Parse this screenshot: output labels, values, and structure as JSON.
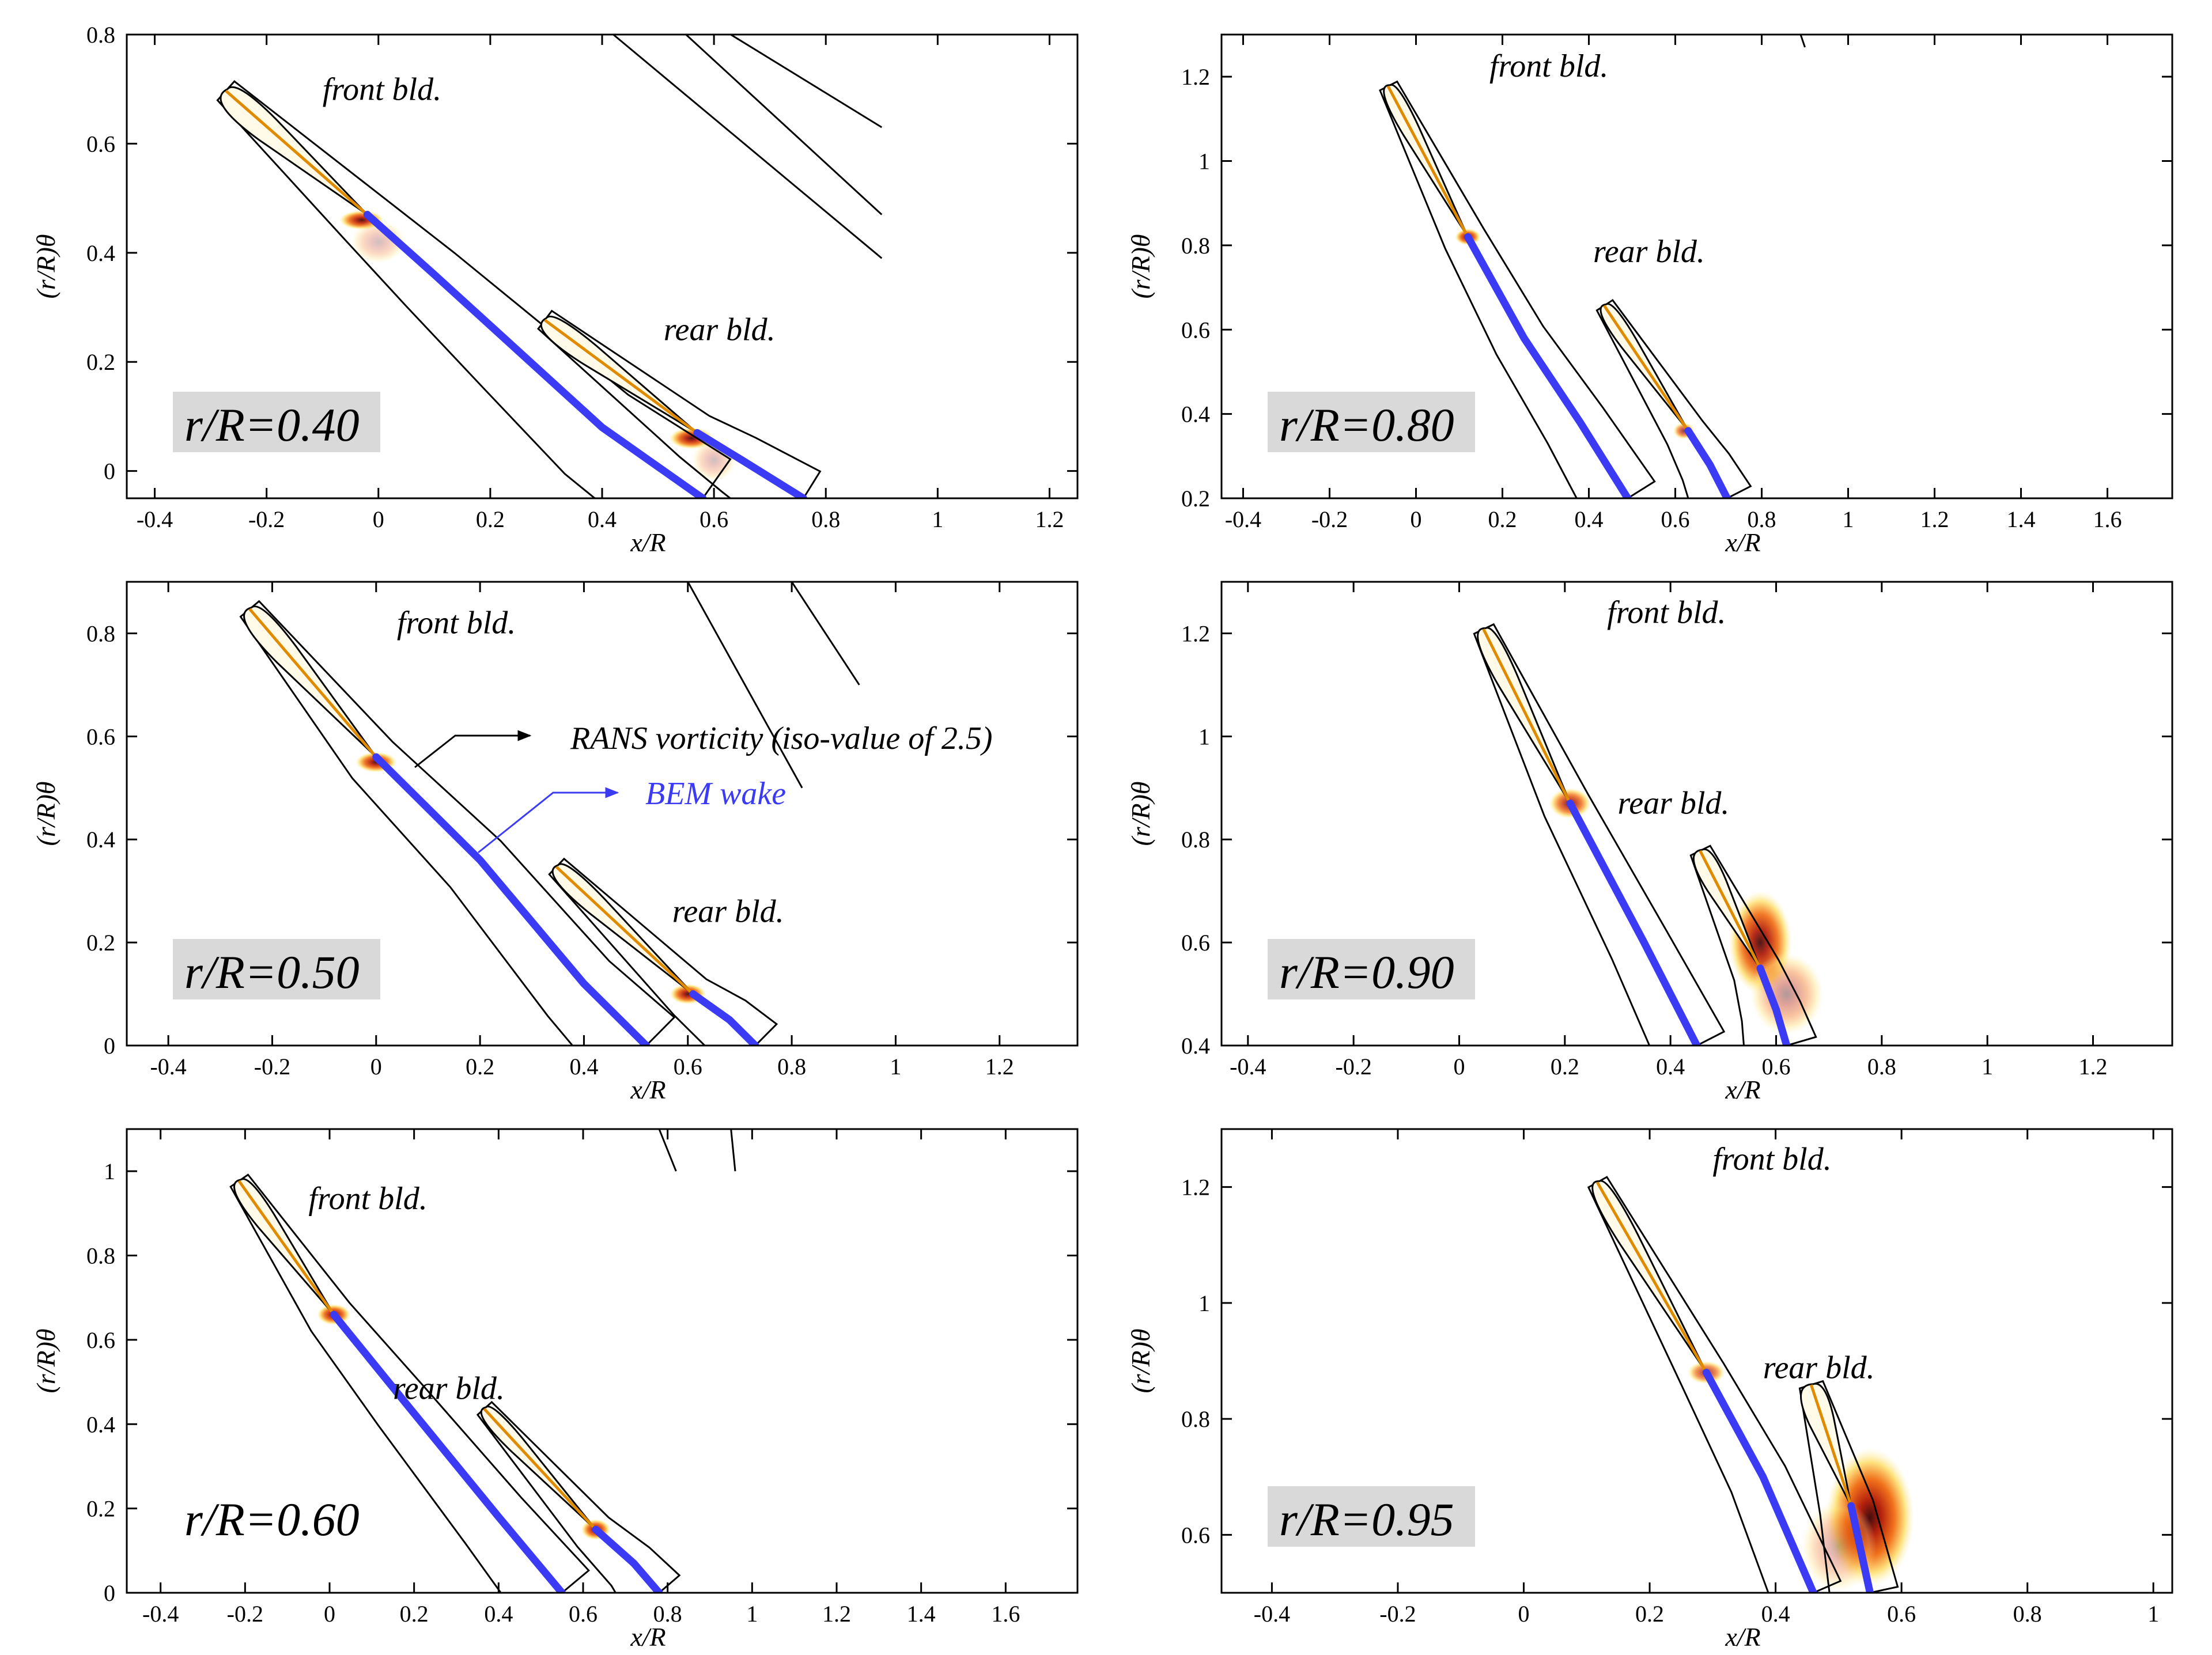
{
  "figure": {
    "legend": {
      "rans_label": "RANS vorticity (iso-value of 2.5)",
      "bem_label": "BEM wake",
      "rans_color": "#000000",
      "bem_color": "#3b3bf5"
    },
    "colors": {
      "bem": "#3b3bf5",
      "label_box": "#d9d9d9",
      "vorticity_low": "#fff3a0",
      "vorticity_mid": "#e23a10",
      "vorticity_high": "#3a0000"
    }
  },
  "chart_data": [
    {
      "type": "contour",
      "id": "p040",
      "case_label": "r/R=0.40",
      "label_box": true,
      "xlabel": "x/R",
      "ylabel": "(r/R)θ",
      "xlim": [
        -0.45,
        1.25
      ],
      "ylim": [
        -0.05,
        0.8
      ],
      "xticks": [
        "-0.4",
        "-0.2",
        "0",
        "0.2",
        "0.4",
        "0.6",
        "0.8",
        "1",
        "1.2"
      ],
      "xtick_values": [
        -0.4,
        -0.2,
        0,
        0.2,
        0.4,
        0.6,
        0.8,
        1,
        1.2
      ],
      "yticks": [
        "0",
        "0.2",
        "0.4",
        "0.6",
        "0.8"
      ],
      "ytick_values": [
        0,
        0.2,
        0.4,
        0.6,
        0.8
      ],
      "front_label": "front bld.",
      "rear_label": "rear bld.",
      "front_label_pos": [
        -0.1,
        0.68
      ],
      "rear_label_pos": [
        0.51,
        0.24
      ],
      "front_blade": {
        "le": [
          -0.27,
          0.7
        ],
        "te": [
          -0.02,
          0.47
        ],
        "width": 0.03
      },
      "rear_blade": {
        "le": [
          0.3,
          0.28
        ],
        "te": [
          0.57,
          0.07
        ],
        "width": 0.025
      },
      "wake_front": [
        [
          -0.02,
          0.47
        ],
        [
          0.1,
          0.36
        ],
        [
          0.25,
          0.22
        ],
        [
          0.4,
          0.08
        ],
        [
          0.58,
          -0.05
        ]
      ],
      "wake_rear": [
        [
          0.57,
          0.07
        ],
        [
          0.65,
          0.02
        ],
        [
          0.76,
          -0.05
        ]
      ],
      "vort_spots": [
        [
          -0.03,
          0.46,
          0.04,
          0.018,
          0.9
        ],
        [
          0.0,
          0.42,
          0.05,
          0.04,
          0.25
        ],
        [
          0.56,
          0.06,
          0.04,
          0.02,
          0.9
        ],
        [
          0.6,
          0.02,
          0.04,
          0.04,
          0.25
        ]
      ],
      "far_contours": [
        [
          [
            0.42,
            0.8
          ],
          [
            0.9,
            0.39
          ]
        ],
        [
          [
            0.55,
            0.8
          ],
          [
            0.9,
            0.47
          ]
        ],
        [
          [
            0.63,
            0.8
          ],
          [
            0.9,
            0.63
          ]
        ]
      ]
    },
    {
      "type": "contour",
      "id": "p080",
      "case_label": "r/R=0.80",
      "label_box": true,
      "xlabel": "x/R",
      "ylabel": "(r/R)θ",
      "xlim": [
        -0.45,
        1.75
      ],
      "ylim": [
        0.2,
        1.3
      ],
      "xticks": [
        "-0.4",
        "-0.2",
        "0",
        "0.2",
        "0.4",
        "0.6",
        "0.8",
        "1",
        "1.2",
        "1.4",
        "1.6"
      ],
      "xtick_values": [
        -0.4,
        -0.2,
        0,
        0.2,
        0.4,
        0.6,
        0.8,
        1,
        1.2,
        1.4,
        1.6
      ],
      "yticks": [
        "0.2",
        "0.4",
        "0.6",
        "0.8",
        "1",
        "1.2"
      ],
      "ytick_values": [
        0.2,
        0.4,
        0.6,
        0.8,
        1,
        1.2
      ],
      "front_label": "front bld.",
      "rear_label": "rear bld.",
      "front_label_pos": [
        0.17,
        1.2
      ],
      "rear_label_pos": [
        0.41,
        0.76
      ],
      "front_blade": {
        "le": [
          -0.06,
          1.18
        ],
        "te": [
          0.12,
          0.82
        ],
        "width": 0.025
      },
      "rear_blade": {
        "le": [
          0.44,
          0.66
        ],
        "te": [
          0.63,
          0.36
        ],
        "width": 0.02
      },
      "wake_front": [
        [
          0.12,
          0.82
        ],
        [
          0.25,
          0.58
        ],
        [
          0.38,
          0.38
        ],
        [
          0.49,
          0.2
        ]
      ],
      "wake_rear": [
        [
          0.63,
          0.36
        ],
        [
          0.68,
          0.28
        ],
        [
          0.72,
          0.2
        ]
      ],
      "vort_spots": [
        [
          0.12,
          0.82,
          0.03,
          0.02,
          0.9
        ],
        [
          0.62,
          0.36,
          0.025,
          0.02,
          0.7
        ]
      ],
      "far_contours": [
        [
          [
            0.89,
            1.3
          ],
          [
            0.9,
            1.27
          ]
        ]
      ]
    },
    {
      "type": "contour",
      "id": "p050",
      "case_label": "r/R=0.50",
      "label_box": true,
      "xlabel": "x/R",
      "ylabel": "(r/R)θ",
      "xlim": [
        -0.48,
        1.35
      ],
      "ylim": [
        0,
        0.9
      ],
      "xticks": [
        "-0.4",
        "-0.2",
        "0",
        "0.2",
        "0.4",
        "0.6",
        "0.8",
        "1",
        "1.2"
      ],
      "xtick_values": [
        -0.4,
        -0.2,
        0,
        0.2,
        0.4,
        0.6,
        0.8,
        1,
        1.2
      ],
      "yticks": [
        "0",
        "0.2",
        "0.4",
        "0.6",
        "0.8"
      ],
      "ytick_values": [
        0,
        0.2,
        0.4,
        0.6,
        0.8
      ],
      "front_label": "front bld.",
      "rear_label": "rear bld.",
      "front_label_pos": [
        0.04,
        0.8
      ],
      "rear_label_pos": [
        0.57,
        0.24
      ],
      "front_blade": {
        "le": [
          -0.24,
          0.85
        ],
        "te": [
          0.0,
          0.56
        ],
        "width": 0.03
      },
      "rear_blade": {
        "le": [
          0.35,
          0.35
        ],
        "te": [
          0.61,
          0.1
        ],
        "width": 0.025
      },
      "wake_front": [
        [
          0.0,
          0.56
        ],
        [
          0.2,
          0.36
        ],
        [
          0.4,
          0.12
        ],
        [
          0.52,
          0.0
        ]
      ],
      "wake_rear": [
        [
          0.61,
          0.1
        ],
        [
          0.68,
          0.05
        ],
        [
          0.73,
          0.0
        ]
      ],
      "vort_spots": [
        [
          0.0,
          0.55,
          0.04,
          0.02,
          0.9
        ],
        [
          0.6,
          0.1,
          0.035,
          0.02,
          0.9
        ]
      ],
      "far_contours": [
        [
          [
            0.6,
            0.9
          ],
          [
            0.82,
            0.5
          ]
        ],
        [
          [
            0.8,
            0.9
          ],
          [
            0.93,
            0.7
          ]
        ]
      ]
    },
    {
      "type": "contour",
      "id": "p090",
      "case_label": "r/R=0.90",
      "label_box": true,
      "xlabel": "x/R",
      "ylabel": "(r/R)θ",
      "xlim": [
        -0.45,
        1.35
      ],
      "ylim": [
        0.4,
        1.3
      ],
      "xticks": [
        "-0.4",
        "-0.2",
        "0",
        "0.2",
        "0.4",
        "0.6",
        "0.8",
        "1",
        "1.2"
      ],
      "xtick_values": [
        -0.4,
        -0.2,
        0,
        0.2,
        0.4,
        0.6,
        0.8,
        1,
        1.2
      ],
      "yticks": [
        "0.4",
        "0.6",
        "0.8",
        "1",
        "1.2"
      ],
      "ytick_values": [
        0.4,
        0.6,
        0.8,
        1,
        1.2
      ],
      "front_label": "front bld.",
      "rear_label": "rear bld.",
      "front_label_pos": [
        0.28,
        1.22
      ],
      "rear_label_pos": [
        0.3,
        0.85
      ],
      "front_blade": {
        "le": [
          0.05,
          1.21
        ],
        "te": [
          0.21,
          0.87
        ],
        "width": 0.025
      },
      "rear_blade": {
        "le": [
          0.46,
          0.78
        ],
        "te": [
          0.57,
          0.55
        ],
        "width": 0.025
      },
      "wake_front": [
        [
          0.21,
          0.87
        ],
        [
          0.35,
          0.6
        ],
        [
          0.45,
          0.4
        ]
      ],
      "wake_rear": [
        [
          0.57,
          0.55
        ],
        [
          0.6,
          0.47
        ],
        [
          0.62,
          0.4
        ]
      ],
      "vort_spots": [
        [
          0.21,
          0.87,
          0.04,
          0.03,
          0.8
        ],
        [
          0.57,
          0.6,
          0.06,
          0.1,
          0.9
        ],
        [
          0.62,
          0.5,
          0.07,
          0.08,
          0.4
        ]
      ],
      "far_contours": []
    },
    {
      "type": "contour",
      "id": "p060",
      "case_label": "r/R=0.60",
      "label_box": false,
      "xlabel": "x/R",
      "ylabel": "(r/R)θ",
      "xlim": [
        -0.48,
        1.77
      ],
      "ylim": [
        0,
        1.1
      ],
      "xticks": [
        "-0.4",
        "-0.2",
        "0",
        "0.2",
        "0.4",
        "0.6",
        "0.8",
        "1",
        "1.2",
        "1.4",
        "1.6"
      ],
      "xtick_values": [
        -0.4,
        -0.2,
        0,
        0.2,
        0.4,
        0.6,
        0.8,
        1,
        1.2,
        1.4,
        1.6
      ],
      "yticks": [
        "0",
        "0.2",
        "0.4",
        "0.6",
        "0.8",
        "1"
      ],
      "ytick_values": [
        0,
        0.2,
        0.4,
        0.6,
        0.8,
        1
      ],
      "front_label": "front bld.",
      "rear_label": "rear bld.",
      "front_label_pos": [
        -0.05,
        0.91
      ],
      "rear_label_pos": [
        0.15,
        0.46
      ],
      "front_blade": {
        "le": [
          -0.21,
          0.98
        ],
        "te": [
          0.01,
          0.66
        ],
        "width": 0.03
      },
      "rear_blade": {
        "le": [
          0.37,
          0.44
        ],
        "te": [
          0.63,
          0.15
        ],
        "width": 0.025
      },
      "wake_front": [
        [
          0.01,
          0.66
        ],
        [
          0.18,
          0.45
        ],
        [
          0.4,
          0.18
        ],
        [
          0.55,
          0.0
        ]
      ],
      "wake_rear": [
        [
          0.63,
          0.15
        ],
        [
          0.72,
          0.07
        ],
        [
          0.78,
          0.0
        ]
      ],
      "vort_spots": [
        [
          0.01,
          0.66,
          0.04,
          0.025,
          0.9
        ],
        [
          0.63,
          0.15,
          0.035,
          0.025,
          0.9
        ]
      ],
      "far_contours": [
        [
          [
            0.78,
            1.1
          ],
          [
            0.82,
            1.0
          ]
        ],
        [
          [
            0.95,
            1.1
          ],
          [
            0.96,
            1.0
          ]
        ]
      ]
    },
    {
      "type": "contour",
      "id": "p095",
      "case_label": "r/R=0.95",
      "label_box": true,
      "xlabel": "x/R",
      "ylabel": "(r/R)θ",
      "xlim": [
        -0.48,
        1.03
      ],
      "ylim": [
        0.5,
        1.3
      ],
      "xticks": [
        "-0.4",
        "-0.2",
        "0",
        "0.2",
        "0.4",
        "0.6",
        "0.8",
        "1"
      ],
      "xtick_values": [
        -0.4,
        -0.2,
        0,
        0.2,
        0.4,
        0.6,
        0.8,
        1
      ],
      "yticks": [
        "0.6",
        "0.8",
        "1",
        "1.2"
      ],
      "ytick_values": [
        0.6,
        0.8,
        1,
        1.2
      ],
      "front_label": "front bld.",
      "rear_label": "rear bld.",
      "front_label_pos": [
        0.3,
        1.23
      ],
      "rear_label_pos": [
        0.38,
        0.87
      ],
      "front_blade": {
        "le": [
          0.12,
          1.21
        ],
        "te": [
          0.29,
          0.88
        ],
        "width": 0.02
      },
      "rear_blade": {
        "le": [
          0.46,
          0.86
        ],
        "te": [
          0.52,
          0.65
        ],
        "width": 0.025
      },
      "wake_front": [
        [
          0.29,
          0.88
        ],
        [
          0.38,
          0.7
        ],
        [
          0.46,
          0.5
        ]
      ],
      "wake_rear": [
        [
          0.52,
          0.65
        ],
        [
          0.55,
          0.5
        ]
      ],
      "vort_spots": [
        [
          0.29,
          0.88,
          0.03,
          0.02,
          0.7
        ],
        [
          0.55,
          0.63,
          0.07,
          0.12,
          0.95
        ],
        [
          0.5,
          0.58,
          0.06,
          0.08,
          0.3
        ]
      ],
      "far_contours": []
    }
  ]
}
